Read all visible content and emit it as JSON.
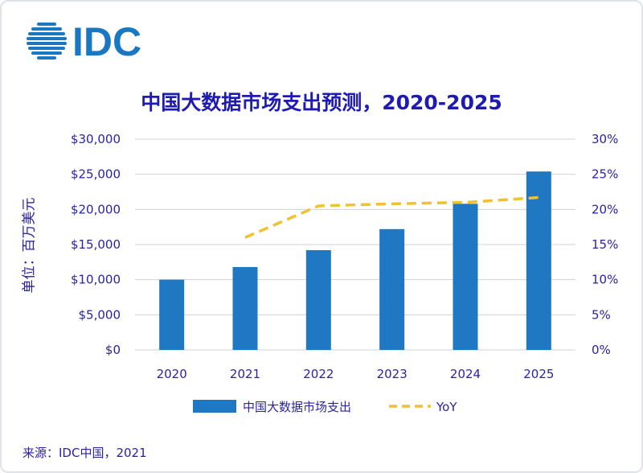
{
  "logo": {
    "text": "IDC",
    "color": "#1a78c2",
    "icon": "globe-icon"
  },
  "chart_data": {
    "type": "bar",
    "title": "中国大数据市场支出预测，2020-2025",
    "ylabel": "单位：百万美元",
    "categories": [
      "2020",
      "2021",
      "2022",
      "2023",
      "2024",
      "2025"
    ],
    "series": [
      {
        "name": "中国大数据市场支出",
        "type": "bar",
        "axis": "left",
        "color": "#1f78c1",
        "values": [
          10000,
          11800,
          14200,
          17200,
          20800,
          25400
        ]
      },
      {
        "name": "YoY",
        "type": "line",
        "axis": "right",
        "style": "dashed",
        "color": "#f2c12e",
        "values": [
          null,
          0.16,
          0.205,
          0.208,
          0.21,
          0.217
        ]
      }
    ],
    "y_left": {
      "lim": [
        0,
        30000
      ],
      "ticks": [
        0,
        5000,
        10000,
        15000,
        20000,
        25000,
        30000
      ],
      "tick_labels": [
        "$0",
        "$5,000",
        "$10,000",
        "$15,000",
        "$20,000",
        "$25,000",
        "$30,000"
      ]
    },
    "y_right": {
      "lim": [
        0,
        0.3
      ],
      "ticks": [
        0,
        0.05,
        0.1,
        0.15,
        0.2,
        0.25,
        0.3
      ],
      "tick_labels": [
        "0%",
        "5%",
        "10%",
        "15%",
        "20%",
        "25%",
        "30%"
      ]
    },
    "grid": true,
    "legend_position": "bottom"
  },
  "source": "来源：IDC中国，2021",
  "colors": {
    "title": "#1f1ab2",
    "text": "#2a22a8",
    "grid": "#d0d0d8"
  }
}
